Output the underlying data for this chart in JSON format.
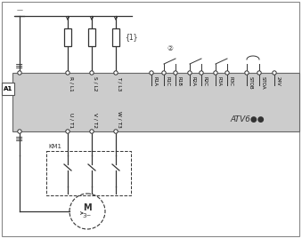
{
  "bg_color": "#cccccc",
  "border_color": "#555555",
  "line_color": "#333333",
  "title": "ATV6●●",
  "top_labels": [
    "R / L1",
    "S / L2",
    "T / L3"
  ],
  "bottom_labels": [
    "U / T1",
    "V / T2",
    "W / T3"
  ],
  "relay_labels": [
    "R1A",
    "R1C",
    "R1B",
    "R2A",
    "R2C",
    "R3A",
    "R3C",
    "STOB",
    "STOA",
    "24V"
  ],
  "contactor_label": "KM1",
  "fuse_label": "{1}"
}
